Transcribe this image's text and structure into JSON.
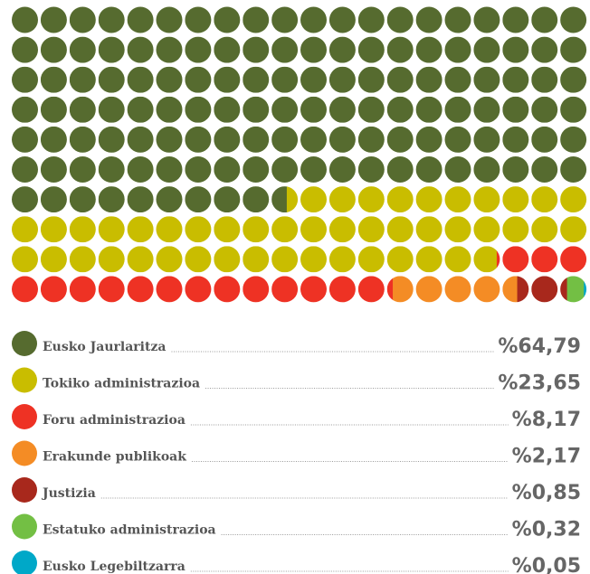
{
  "chart_data": {
    "type": "waffle",
    "categories": [
      "Eusko Jaurlaritza",
      "Tokiko administrazioa",
      "Foru administrazioa",
      "Erakunde publikoak",
      "Justizia",
      "Estatuko administrazioa",
      "Eusko Legebiltzarra"
    ],
    "values": [
      64.79,
      23.65,
      8.17,
      2.17,
      0.85,
      0.32,
      0.05
    ],
    "value_labels": [
      "%64,79",
      "%23,65",
      "%8,17",
      "%2,17",
      "%0,85",
      "%0,32",
      "%0,05"
    ],
    "colors": [
      "#566b2f",
      "#c9bd00",
      "#ee3224",
      "#f48c25",
      "#a8281c",
      "#73bf44",
      "#00a8c8"
    ]
  }
}
